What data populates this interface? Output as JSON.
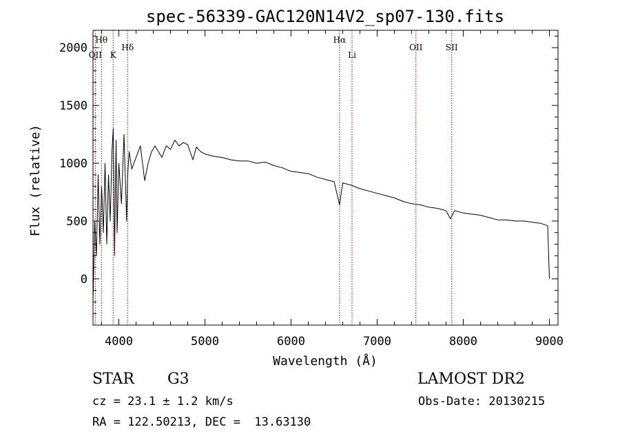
{
  "chart_data": {
    "type": "line",
    "title": "spec-56339-GAC120N14V2_sp07-130.fits",
    "xlabel": "Wavelength (Å)",
    "ylabel": "Flux (relative)",
    "xlim": [
      3700,
      9100
    ],
    "ylim": [
      -400,
      2150
    ],
    "xticks": [
      4000,
      5000,
      6000,
      7000,
      8000,
      9000
    ],
    "yticks": [
      0,
      500,
      1000,
      1500,
      2000
    ],
    "grid": false,
    "series": [
      {
        "x": [
          3700,
          3720,
          3740,
          3760,
          3780,
          3800,
          3820,
          3840,
          3860,
          3880,
          3900,
          3920,
          3935,
          3950,
          3968,
          3980,
          4000,
          4030,
          4060,
          4090,
          4102,
          4120,
          4150,
          4200,
          4250,
          4300,
          4340,
          4380,
          4420,
          4460,
          4500,
          4550,
          4600,
          4650,
          4700,
          4750,
          4800,
          4861,
          4900,
          4950,
          5000,
          5100,
          5200,
          5300,
          5400,
          5500,
          5600,
          5700,
          5800,
          5900,
          6000,
          6100,
          6200,
          6300,
          6400,
          6500,
          6563,
          6600,
          6700,
          6800,
          6900,
          7000,
          7100,
          7200,
          7300,
          7400,
          7500,
          7600,
          7700,
          7800,
          7850,
          7900,
          8000,
          8100,
          8200,
          8300,
          8400,
          8500,
          8600,
          8700,
          8800,
          8900,
          8980,
          9000
        ],
        "y": [
          -200,
          500,
          200,
          900,
          300,
          800,
          400,
          1000,
          300,
          900,
          500,
          1100,
          1300,
          200,
          1200,
          400,
          1000,
          650,
          1250,
          500,
          900,
          1100,
          950,
          1050,
          1150,
          850,
          1000,
          1100,
          1150,
          1100,
          1050,
          1150,
          1120,
          1200,
          1150,
          1180,
          1160,
          1030,
          1140,
          1100,
          1080,
          1060,
          1050,
          1030,
          1020,
          1020,
          1000,
          1010,
          980,
          960,
          930,
          920,
          910,
          880,
          860,
          840,
          640,
          830,
          810,
          780,
          760,
          740,
          720,
          700,
          670,
          650,
          640,
          620,
          610,
          590,
          520,
          590,
          570,
          560,
          550,
          530,
          510,
          510,
          500,
          500,
          490,
          480,
          460,
          0
        ]
      }
    ],
    "line_markers": [
      {
        "label": "Hθ",
        "x": 3798
      },
      {
        "label": "OII",
        "x": 3727
      },
      {
        "label": "K",
        "x": 3934
      },
      {
        "label": "Hδ",
        "x": 4102
      },
      {
        "label": "Hα",
        "x": 6563
      },
      {
        "label": "Li",
        "x": 6708
      },
      {
        "label": "OII",
        "x": 7450
      },
      {
        "label": "SII",
        "x": 7866
      }
    ],
    "marker_color": "#8b0000",
    "line_color": "#000000"
  },
  "info": {
    "object_class": "STAR",
    "subclass": "G3",
    "survey": "LAMOST DR2",
    "redshift": "cz = 23.1 ± 1.2 km/s",
    "obs_date": "Obs-Date: 20130215",
    "coords": "RA = 122.50213, DEC =  13.63130"
  }
}
